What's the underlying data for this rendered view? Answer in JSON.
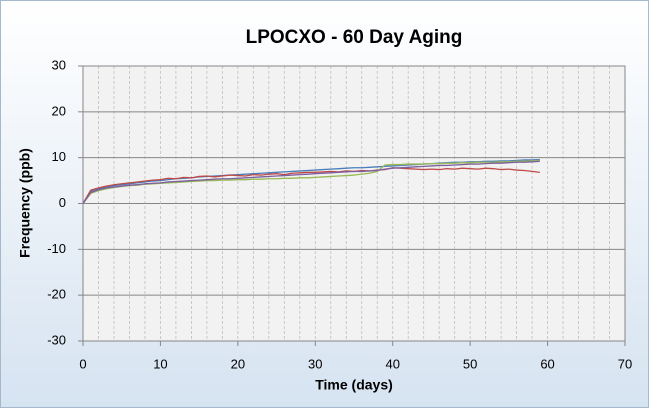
{
  "chart_data": {
    "type": "line",
    "title": "LPOCXO - 60 Day Aging",
    "xlabel": "Time (days)",
    "ylabel": "Frequency (ppb)",
    "x": [
      0,
      1,
      2,
      3,
      4,
      5,
      6,
      7,
      8,
      9,
      10,
      11,
      12,
      13,
      14,
      15,
      16,
      17,
      18,
      19,
      20,
      21,
      22,
      23,
      24,
      25,
      26,
      27,
      28,
      29,
      30,
      31,
      32,
      33,
      34,
      35,
      36,
      37,
      38,
      39,
      40,
      41,
      42,
      43,
      44,
      45,
      46,
      47,
      48,
      49,
      50,
      51,
      52,
      53,
      54,
      55,
      56,
      57,
      58,
      59
    ],
    "series": [
      {
        "color": "#4a7ebb",
        "values": [
          0,
          2.6,
          3.2,
          3.6,
          3.9,
          4.1,
          4.3,
          4.5,
          4.7,
          4.9,
          5.0,
          5.2,
          5.4,
          5.5,
          5.6,
          5.8,
          5.9,
          6.0,
          6.1,
          6.2,
          6.3,
          6.4,
          6.5,
          6.6,
          6.7,
          6.8,
          6.9,
          7.0,
          7.1,
          7.2,
          7.3,
          7.4,
          7.5,
          7.6,
          7.7,
          7.8,
          7.8,
          7.9,
          8.0,
          8.1,
          8.2,
          8.3,
          8.4,
          8.5,
          8.6,
          8.7,
          8.8,
          8.9,
          9.0,
          9.0,
          9.1,
          9.1,
          9.2,
          9.2,
          9.3,
          9.3,
          9.4,
          9.5,
          9.5,
          9.6
        ]
      },
      {
        "color": "#be4b48",
        "values": [
          0,
          2.9,
          3.4,
          3.8,
          4.1,
          4.3,
          4.5,
          4.7,
          4.9,
          5.1,
          5.2,
          5.5,
          5.4,
          5.7,
          5.6,
          5.9,
          6.0,
          5.8,
          6.0,
          6.2,
          6.1,
          6.0,
          6.3,
          6.2,
          6.4,
          6.5,
          6.3,
          6.6,
          6.7,
          6.8,
          6.8,
          6.9,
          7.0,
          6.9,
          7.1,
          7.0,
          7.2,
          7.1,
          7.3,
          7.4,
          7.8,
          7.7,
          7.6,
          7.5,
          7.4,
          7.5,
          7.4,
          7.6,
          7.5,
          7.7,
          7.6,
          7.5,
          7.7,
          7.6,
          7.4,
          7.5,
          7.3,
          7.2,
          7.0,
          6.8
        ]
      },
      {
        "color": "#98b954",
        "values": [
          0,
          2.2,
          2.8,
          3.2,
          3.5,
          3.7,
          3.9,
          4.0,
          4.2,
          4.3,
          4.4,
          4.5,
          4.6,
          4.7,
          4.8,
          4.9,
          5.0,
          5.0,
          5.1,
          5.1,
          5.2,
          5.2,
          5.3,
          5.3,
          5.4,
          5.4,
          5.5,
          5.5,
          5.6,
          5.6,
          5.7,
          5.8,
          5.9,
          6.0,
          6.1,
          6.2,
          6.4,
          6.6,
          7.0,
          8.4,
          8.5,
          8.5,
          8.6,
          8.6,
          8.6,
          8.7,
          8.7,
          8.8,
          8.8,
          8.9,
          8.9,
          9.0,
          9.0,
          9.0,
          9.1,
          9.1,
          9.2,
          9.2,
          9.3,
          9.4
        ]
      },
      {
        "color": "#7d60a0",
        "values": [
          0,
          2.4,
          3.0,
          3.4,
          3.6,
          3.8,
          4.0,
          4.1,
          4.3,
          4.4,
          4.5,
          4.7,
          4.8,
          4.9,
          5.0,
          5.1,
          5.2,
          5.3,
          5.4,
          5.4,
          5.5,
          5.6,
          5.7,
          5.8,
          5.9,
          6.0,
          6.1,
          6.2,
          6.3,
          6.4,
          6.5,
          6.6,
          6.7,
          6.8,
          6.9,
          7.0,
          7.0,
          7.1,
          7.2,
          7.5,
          7.7,
          7.8,
          7.9,
          8.0,
          8.1,
          8.2,
          8.3,
          8.3,
          8.4,
          8.5,
          8.6,
          8.6,
          8.7,
          8.8,
          8.8,
          8.9,
          9.0,
          9.0,
          9.1,
          9.2
        ]
      }
    ],
    "xlim": [
      0,
      70
    ],
    "xticks": [
      0,
      10,
      20,
      30,
      40,
      50,
      60,
      70
    ],
    "ylim": [
      -30,
      30
    ],
    "yticks": [
      -30,
      -20,
      -10,
      0,
      10,
      20,
      30
    ],
    "grid": true
  }
}
